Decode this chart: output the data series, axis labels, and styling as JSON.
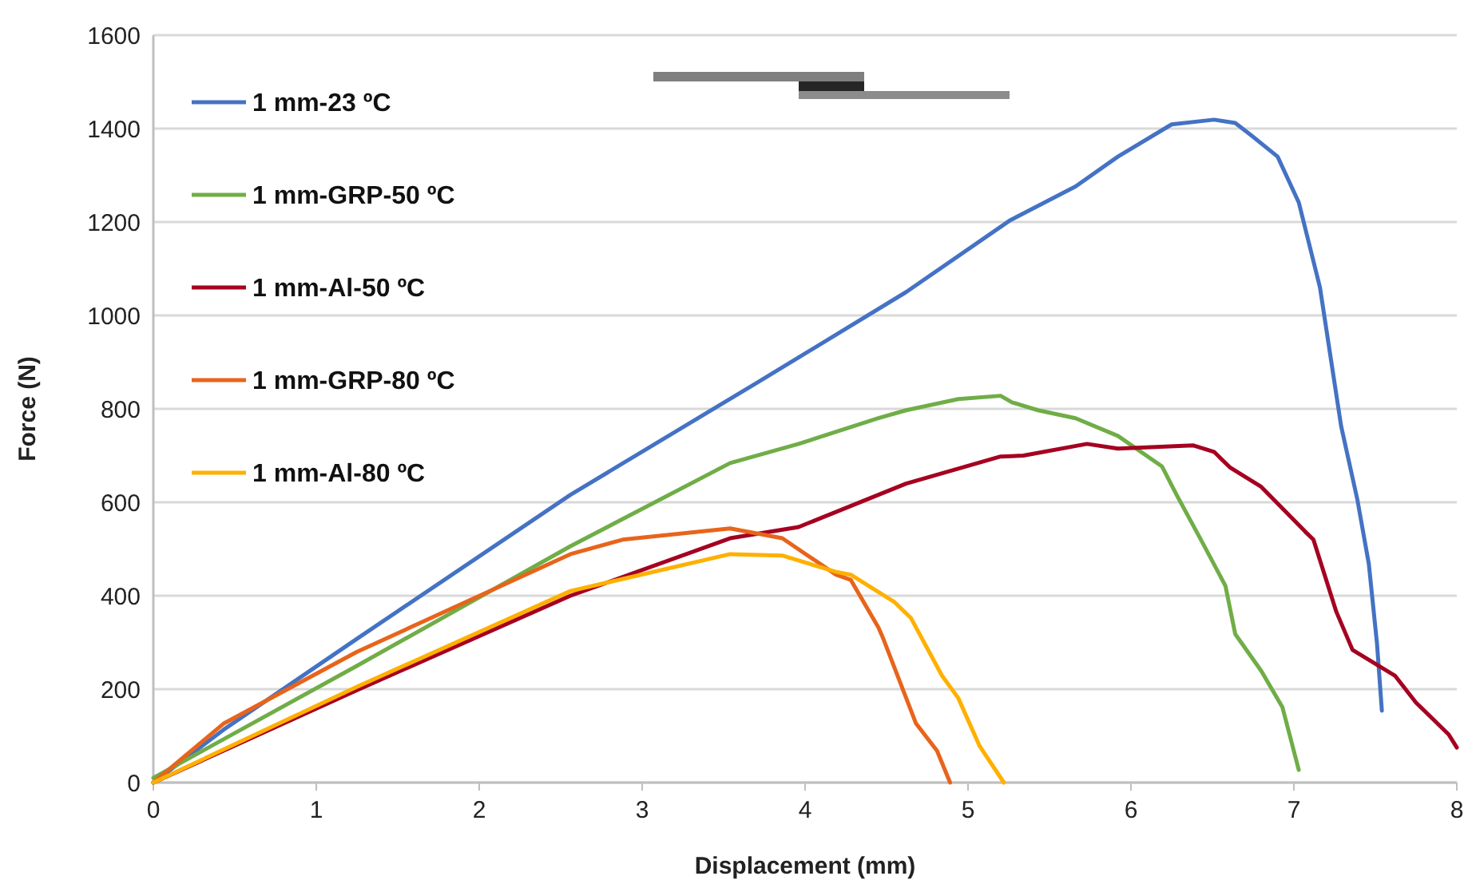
{
  "chart_data": {
    "type": "line",
    "xlabel": "Displacement (mm)",
    "ylabel": "Force (N)",
    "xlim": [
      0,
      8
    ],
    "xticks": [
      0,
      1,
      2,
      3,
      4,
      5,
      6,
      7,
      8
    ],
    "ylim": [
      0,
      1600
    ],
    "yticks": [
      0,
      200,
      400,
      600,
      800,
      1000,
      1200,
      1400,
      1600
    ],
    "grid": "y",
    "legend": "top left",
    "marker": "none",
    "line_style": "solid",
    "series": [
      {
        "name": "1 mm-23 ºC",
        "color": "#4472c4",
        "x": [
          0,
          0.43,
          1.25,
          2.56,
          3.7,
          3.96,
          4.62,
          5.26,
          5.66,
          5.92,
          6.25,
          6.51,
          6.64,
          6.74,
          6.9,
          7.03,
          7.16,
          7.23,
          7.29,
          7.39,
          7.46,
          7.51,
          7.54
        ],
        "values": [
          0,
          113,
          308,
          616,
          855,
          910,
          1050,
          1204,
          1276,
          1340,
          1409,
          1419,
          1412,
          1385,
          1340,
          1242,
          1060,
          900,
          763,
          605,
          468,
          298,
          154
        ]
      },
      {
        "name": "1 mm-GRP-50 ºC",
        "color": "#70ad47",
        "x": [
          0,
          1.25,
          2.56,
          3.54,
          3.96,
          4.45,
          4.62,
          4.94,
          5.2,
          5.27,
          5.43,
          5.66,
          5.92,
          6.19,
          6.28,
          6.44,
          6.58,
          6.64,
          6.8,
          6.93,
          7.03
        ],
        "values": [
          10,
          250,
          506,
          684,
          725,
          780,
          797,
          821,
          828,
          814,
          797,
          780,
          742,
          677,
          616,
          513,
          421,
          318,
          239,
          161,
          27
        ]
      },
      {
        "name": "1 mm-Al-50 ºC",
        "color": "#a50021",
        "x": [
          0,
          1.25,
          2.56,
          3.54,
          3.96,
          4.45,
          4.62,
          5.2,
          5.34,
          5.73,
          5.92,
          6.38,
          6.51,
          6.61,
          6.8,
          7.07,
          7.12,
          7.26,
          7.36,
          7.62,
          7.75,
          7.95,
          8.0
        ],
        "values": [
          0,
          198,
          400,
          523,
          547,
          616,
          640,
          698,
          700,
          725,
          715,
          722,
          708,
          674,
          633,
          537,
          520,
          366,
          284,
          229,
          171,
          103,
          75
        ]
      },
      {
        "name": "1 mm-GRP-80 ºC",
        "color": "#e8641b",
        "x": [
          0,
          0.43,
          1.25,
          2.56,
          2.88,
          3.54,
          3.86,
          4.19,
          4.28,
          4.45,
          4.48,
          4.68,
          4.81,
          4.89
        ],
        "values": [
          0,
          126,
          280,
          489,
          520,
          544,
          523,
          445,
          434,
          332,
          308,
          127,
          68,
          0
        ]
      },
      {
        "name": "1 mm-Al-80 ºC",
        "color": "#ffb000",
        "x": [
          0,
          1.25,
          2.56,
          3.54,
          3.86,
          4.19,
          4.28,
          4.55,
          4.65,
          4.84,
          4.94,
          5.07,
          5.22
        ],
        "values": [
          0,
          205,
          410,
          489,
          486,
          451,
          445,
          386,
          352,
          229,
          181,
          79,
          0
        ]
      }
    ]
  }
}
